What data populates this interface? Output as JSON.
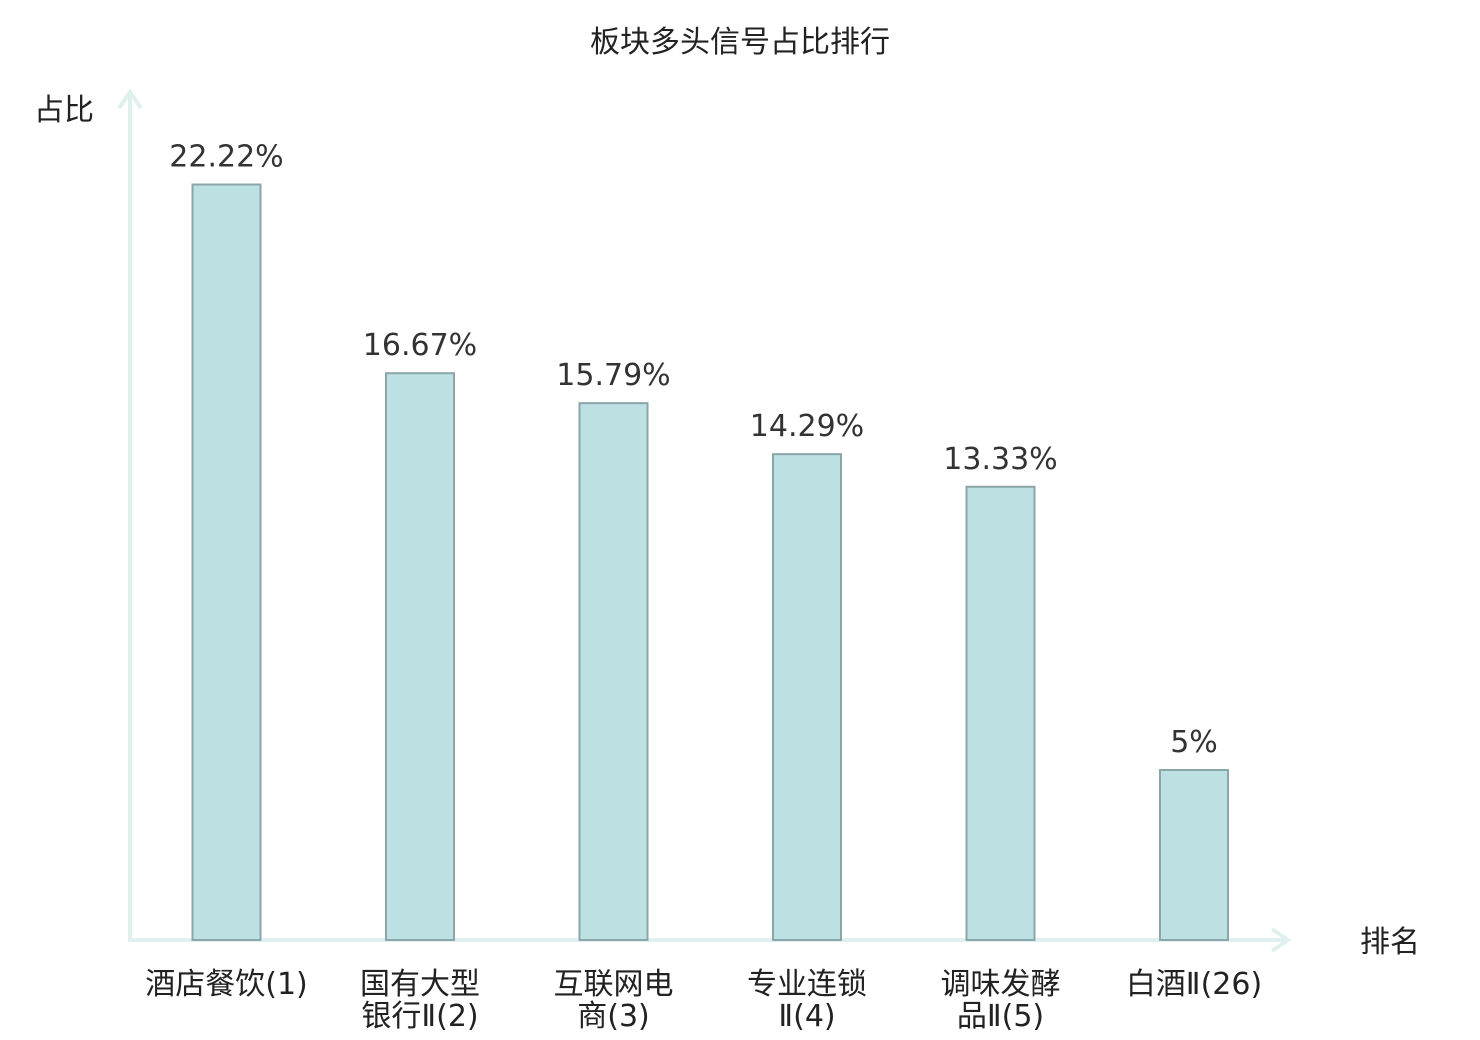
{
  "chart_data": {
    "type": "bar",
    "title": "板块多头信号占比排行",
    "ylabel": "占比",
    "xlabel": "排名",
    "ylim": [
      0,
      25
    ],
    "grid": false,
    "categories": [
      [
        "酒店餐饮(1)"
      ],
      [
        "国有大型",
        "银行Ⅱ(2)"
      ],
      [
        "互联网电",
        "商(3)"
      ],
      [
        "专业连锁",
        "Ⅱ(4)"
      ],
      [
        "调味发酵",
        "品Ⅱ(5)"
      ],
      [
        "白酒Ⅱ(26)"
      ]
    ],
    "values": [
      22.22,
      16.67,
      15.79,
      14.29,
      13.33,
      5
    ],
    "value_labels": [
      "22.22%",
      "16.67%",
      "15.79%",
      "14.29%",
      "13.33%",
      "5%"
    ],
    "highlight_index": 5,
    "colors": {
      "bar_fill": "#bde0e3",
      "bar_stroke": "#8aa6a8",
      "axis": "#dff0ee",
      "highlight_text": "#e8262b",
      "text": "#222222"
    }
  }
}
